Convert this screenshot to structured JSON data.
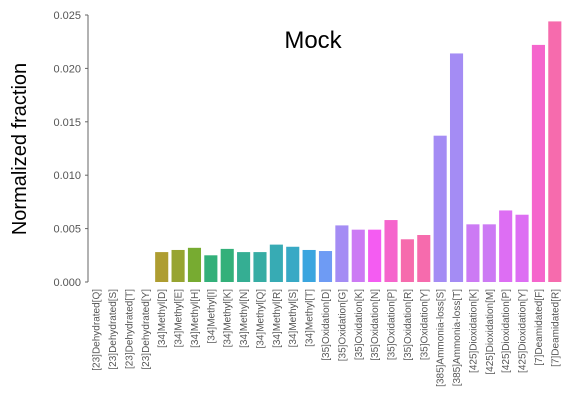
{
  "chart_data": {
    "type": "bar",
    "title": "Mock",
    "xlabel": "",
    "ylabel": "Normalized fraction",
    "ylim": [
      0,
      0.025
    ],
    "yticks": [
      "0.000",
      "0.005",
      "0.010",
      "0.015",
      "0.020",
      "0.025"
    ],
    "grid": false,
    "categories": [
      "[23]Dehydrated[Q]",
      "[23]Dehydrated[S]",
      "[23]Dehydrated[T]",
      "[23]Dehydrated[Y]",
      "[34]Methyl[D]",
      "[34]Methyl[E]",
      "[34]Methyl[H]",
      "[34]Methyl[I]",
      "[34]Methyl[K]",
      "[34]Methyl[N]",
      "[34]Methyl[Q]",
      "[34]Methyl[R]",
      "[34]Methyl[S]",
      "[34]Methyl[T]",
      "[35]Oxidation[D]",
      "[35]Oxidation[G]",
      "[35]Oxidation[K]",
      "[35]Oxidation[N]",
      "[35]Oxidation[P]",
      "[35]Oxidation[R]",
      "[35]Oxidation[Y]",
      "[385]Ammonia-loss[S]",
      "[385]Ammonia-loss[T]",
      "[425]Dioxidation[K]",
      "[425]Dioxidation[M]",
      "[425]Dioxidation[P]",
      "[425]Dioxidation[Y]",
      "[7]Deamidated[F]",
      "[7]Deamidated[R]"
    ],
    "values": [
      0,
      0,
      0,
      0,
      0.0028,
      0.003,
      0.0032,
      0.0025,
      0.0031,
      0.0028,
      0.0028,
      0.0035,
      0.0033,
      0.003,
      0.0029,
      0.0053,
      0.0049,
      0.0049,
      0.0058,
      0.004,
      0.0044,
      0.0137,
      0.0214,
      0.0054,
      0.0054,
      0.0067,
      0.0063,
      0.0222,
      0.0244
    ],
    "colors": [
      "#f77189",
      "#f7754f",
      "#dc8932",
      "#c39532",
      "#ae9d31",
      "#97a431",
      "#77ab31",
      "#33b07a",
      "#33b07a",
      "#35ae93",
      "#36ada4",
      "#37abb4",
      "#38a9c5",
      "#3aa5df",
      "#6e9bf4",
      "#a48cf4",
      "#cc7af4",
      "#f45cf2",
      "#f565cc",
      "#f66bad",
      "#f66bad",
      "#a48cf4",
      "#a48cf4",
      "#cc7af4",
      "#cc7af4",
      "#dd6ef3",
      "#dd6ef3",
      "#f565cc",
      "#f66bad"
    ]
  }
}
